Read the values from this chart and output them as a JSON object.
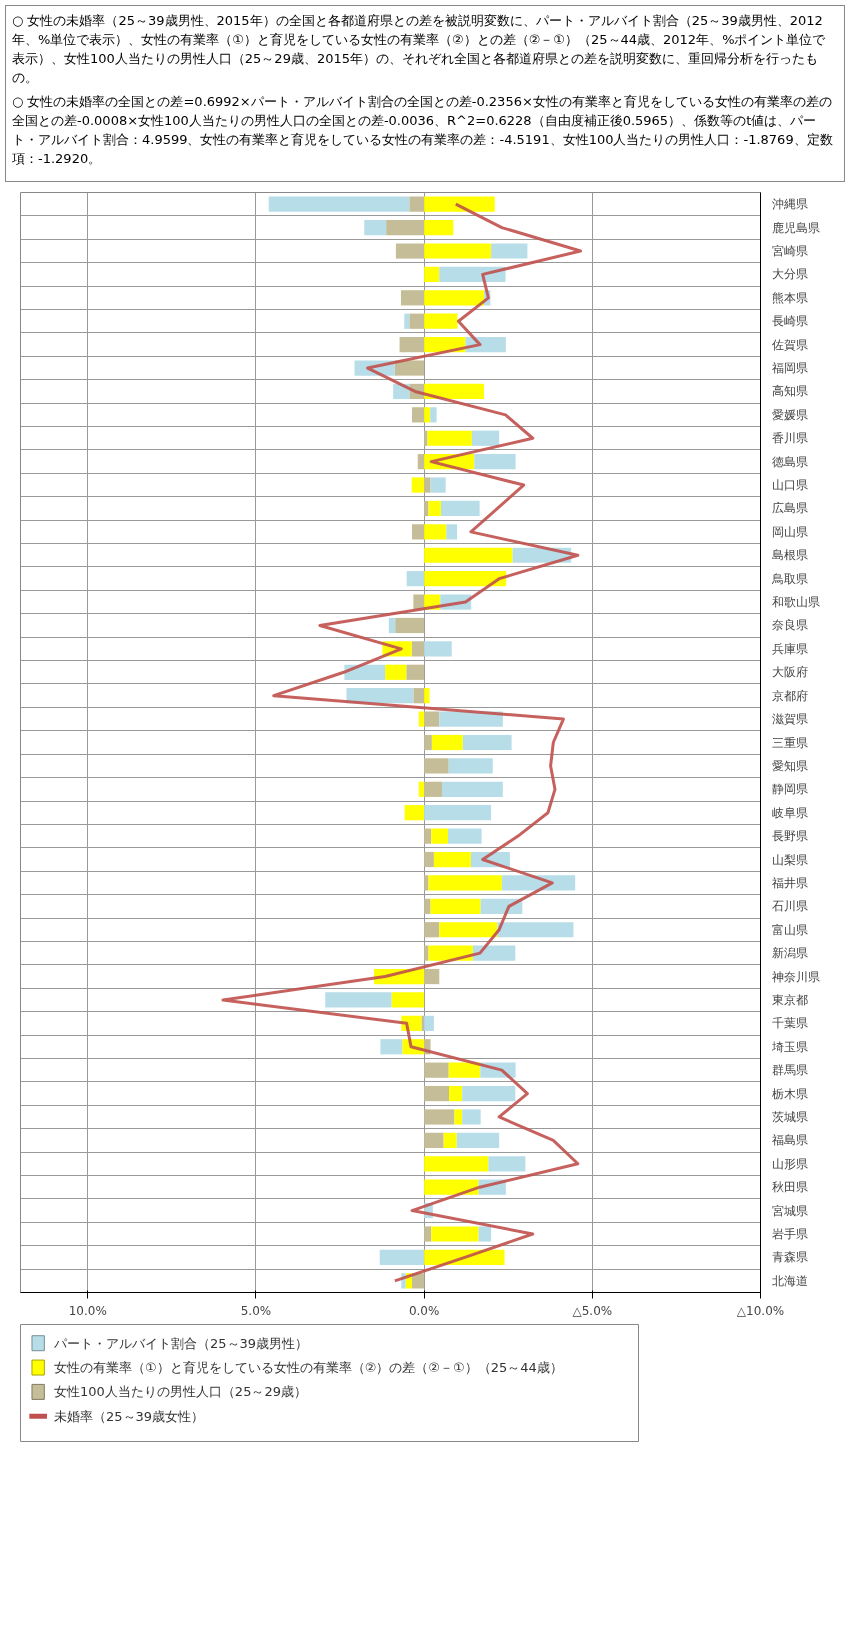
{
  "chart_data": {
    "type": "bar",
    "orientation": "horizontal",
    "stacked": true,
    "annotations": [
      "○ 女性の未婚率（25～39歳男性、2015年）の全国と各都道府県との差を被説明変数に、パート・アルバイト割合（25～39歳男性、2012年、%単位で表示）、女性の有業率（①）と育児をしている女性の有業率（②）との差（②－①）（25～44歳、2012年、%ポイント単位で表示）、女性100人当たりの男性人口（25～29歳、2015年）の、それぞれ全国と各都道府県との差を説明変数に、重回帰分析を行ったもの。",
      "○ 女性の未婚率の全国との差=0.6992×パート・アルバイト割合の全国との差-0.2356×女性の有業率と育児をしている女性の有業率の差の全国との差-0.0008×女性100人当たりの男性人口の全国との差-0.0036、R^2=0.6228（自由度補正後0.5965）、係数等のt値は、パート・アルバイト割合：4.9599、女性の有業率と育児をしている女性の有業率の差：-4.5191、女性100人当たりの男性人口：-1.8769、定数項：-1.2920。"
    ],
    "categories": [
      "沖縄県",
      "鹿児島県",
      "宮崎県",
      "大分県",
      "熊本県",
      "長崎県",
      "佐賀県",
      "福岡県",
      "高知県",
      "愛媛県",
      "香川県",
      "徳島県",
      "山口県",
      "広島県",
      "岡山県",
      "島根県",
      "鳥取県",
      "和歌山県",
      "奈良県",
      "兵庫県",
      "大阪府",
      "京都府",
      "滋賀県",
      "三重県",
      "愛知県",
      "静岡県",
      "岐阜県",
      "長野県",
      "山梨県",
      "福井県",
      "石川県",
      "富山県",
      "新潟県",
      "神奈川県",
      "東京都",
      "千葉県",
      "埼玉県",
      "群馬県",
      "栃木県",
      "茨城県",
      "福島県",
      "山形県",
      "秋田県",
      "宮城県",
      "岩手県",
      "青森県",
      "北海道"
    ],
    "series": [
      {
        "name": "女性100人当たりの男性人口（25～29歳）",
        "color": "#c4bd97",
        "values": [
          0.44,
          1.13,
          0.84,
          0,
          0.69,
          0.44,
          0.73,
          0.87,
          0.44,
          0.36,
          -0.1,
          0.19,
          -0.19,
          -0.13,
          0.36,
          0,
          0,
          0.32,
          0.86,
          0.37,
          0.53,
          0.32,
          -0.45,
          -0.23,
          -0.73,
          -0.53,
          0,
          -0.21,
          -0.29,
          -0.13,
          -0.19,
          -0.45,
          -0.13,
          -0.45,
          0,
          0.08,
          -0.19,
          -0.73,
          -0.74,
          -0.9,
          -0.58,
          0,
          0,
          0,
          -0.21,
          0,
          0.36
        ]
      },
      {
        "name": "女性の有業率（①）と育児をしている女性の有業率（②）の差（②－①）（25～44歳）",
        "color": "#ffff00",
        "values": [
          -2.1,
          -0.87,
          -1.99,
          -0.45,
          -1.78,
          -0.99,
          -1.23,
          0,
          -1.78,
          -0.18,
          -1.32,
          -1.49,
          0.37,
          -0.37,
          -0.66,
          -2.63,
          -2.44,
          -0.48,
          0,
          0.87,
          0.63,
          -0.16,
          0.16,
          -0.92,
          0,
          0.16,
          0.58,
          -0.5,
          -1.1,
          -2.18,
          -1.49,
          -1.73,
          -1.32,
          1.49,
          0.97,
          0.6,
          0.65,
          -0.94,
          -0.39,
          -0.23,
          -0.39,
          -1.91,
          -1.62,
          0,
          -1.41,
          -2.39,
          0.19
        ]
      },
      {
        "name": "パート・アルバイト割合（25～39歳男性）",
        "color": "#b7dde8",
        "values": [
          4.18,
          0.65,
          -1.08,
          -1.97,
          -0.19,
          0.15,
          -1.2,
          1.2,
          0.48,
          -0.19,
          -0.81,
          -1.23,
          -0.45,
          -1.15,
          -0.32,
          -1.74,
          0.52,
          -0.92,
          0.19,
          -0.82,
          1.21,
          1.99,
          -1.89,
          -1.45,
          -1.31,
          -1.81,
          -1.99,
          -1.0,
          -1.16,
          -2.18,
          -1.24,
          -2.26,
          -1.26,
          0,
          1.97,
          -0.29,
          0.65,
          -1.05,
          -1.58,
          -0.55,
          -1.26,
          -1.1,
          -0.81,
          -0.26,
          -0.37,
          1.32,
          0.13
        ]
      },
      {
        "name": "未婚率（25～39歳女性）",
        "type": "line",
        "color": "#c0504d",
        "values": [
          -0.94,
          -2.31,
          -4.65,
          -1.74,
          -1.91,
          -1.02,
          -1.66,
          1.68,
          0.27,
          -2.42,
          -3.23,
          -0.21,
          -2.96,
          -2.18,
          -1.39,
          -4.57,
          -2.23,
          -1.23,
          3.1,
          0.68,
          2.39,
          4.47,
          -4.14,
          -3.84,
          -3.76,
          -3.89,
          -3.68,
          -2.79,
          -1.74,
          -3.81,
          -2.52,
          -2.23,
          -1.66,
          1.16,
          5.98,
          0.52,
          0.39,
          -2.31,
          -3.07,
          -2.23,
          -3.84,
          -4.57,
          -1.65,
          0.36,
          -3.23,
          -1.21,
          0.87
        ]
      }
    ],
    "xlim": [
      12,
      -10
    ],
    "xticks": [
      {
        "value": 10,
        "label": "10.0%"
      },
      {
        "value": 5,
        "label": "5.0%"
      },
      {
        "value": 0,
        "label": "0.0%"
      },
      {
        "value": -5,
        "label": "△5.0%"
      },
      {
        "value": -10,
        "label": "△10.0%"
      }
    ],
    "grid": true,
    "legend": "bottom"
  }
}
